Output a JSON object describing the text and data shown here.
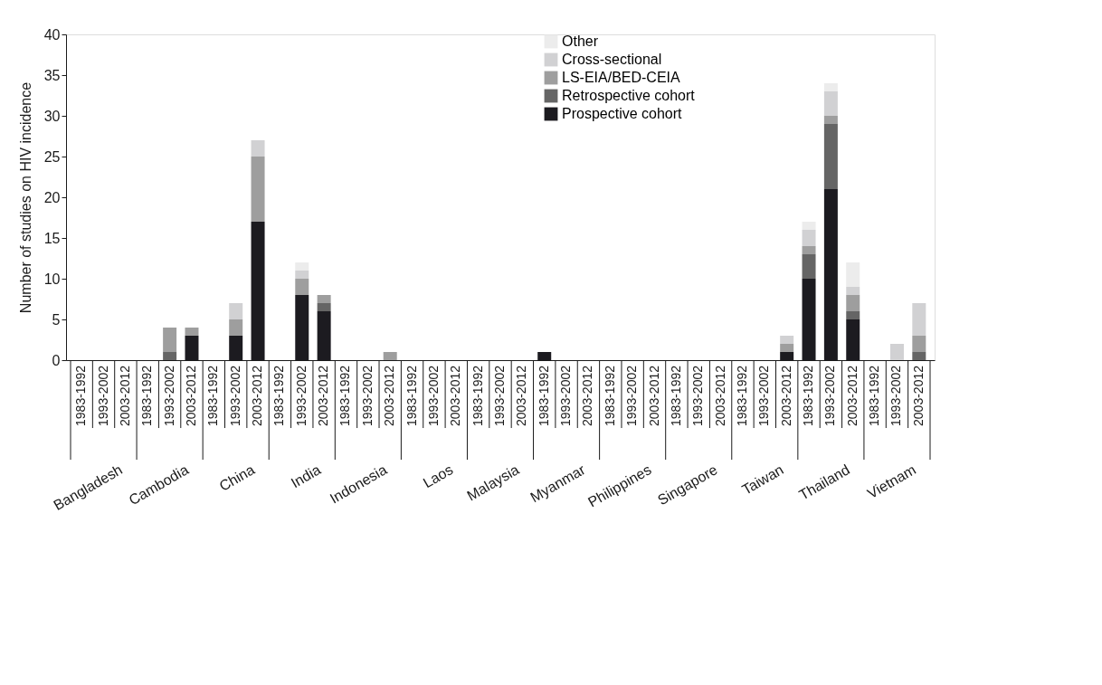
{
  "chart_data": {
    "type": "bar",
    "stacked": true,
    "ylabel": "Number of studies on HIV incidence",
    "categories": [
      "1983-1992",
      "1993-2002",
      "2003-2012",
      "1983-1992",
      "1993-2002",
      "2003-2012",
      "1983-1992",
      "1993-2002",
      "2003-2012",
      "1983-1992",
      "1993-2002",
      "2003-2012",
      "1983-1992",
      "1993-2002",
      "2003-2012",
      "1983-1992",
      "1993-2002",
      "2003-2012",
      "1983-1992",
      "1993-2002",
      "2003-2012",
      "1983-1992",
      "1993-2002",
      "2003-2012",
      "1983-1992",
      "1993-2002",
      "2003-2012",
      "1983-1992",
      "1993-2002",
      "2003-2012",
      "1983-1992",
      "1993-2002",
      "2003-2012",
      "1983-1992",
      "1993-2002",
      "2003-2012",
      "1983-1992",
      "1993-2002",
      "2003-2012"
    ],
    "annotations": [
      "Bangladesh",
      "Cambodia",
      "China",
      "India",
      "Indonesia",
      "Laos",
      "Malaysia",
      "Myanmar",
      "Philippines",
      "Singapore",
      "Taiwan",
      "Thailand",
      "Vietnam"
    ],
    "series": [
      {
        "name": "Prospective cohort",
        "color": "#1c1b20",
        "values": [
          0,
          0,
          0,
          0,
          0,
          3,
          0,
          3,
          17,
          0,
          8,
          6,
          0,
          0,
          0,
          0,
          0,
          0,
          0,
          0,
          0,
          1,
          0,
          0,
          0,
          0,
          0,
          0,
          0,
          0,
          0,
          0,
          1,
          10,
          21,
          5,
          0,
          0,
          0
        ]
      },
      {
        "name": "Retrospective cohort",
        "color": "#656565",
        "values": [
          0,
          0,
          0,
          0,
          1,
          0,
          0,
          0,
          0,
          0,
          0,
          1,
          0,
          0,
          0,
          0,
          0,
          0,
          0,
          0,
          0,
          0,
          0,
          0,
          0,
          0,
          0,
          0,
          0,
          0,
          0,
          0,
          0,
          3,
          8,
          1,
          0,
          0,
          1
        ]
      },
      {
        "name": "LS-EIA/BED-CEIA",
        "color": "#9e9e9e",
        "values": [
          0,
          0,
          0,
          0,
          3,
          1,
          0,
          2,
          8,
          0,
          2,
          1,
          0,
          0,
          1,
          0,
          0,
          0,
          0,
          0,
          0,
          0,
          0,
          0,
          0,
          0,
          0,
          0,
          0,
          0,
          0,
          0,
          1,
          1,
          1,
          2,
          0,
          0,
          2
        ]
      },
      {
        "name": "Cross-sectional",
        "color": "#d1d1d3",
        "values": [
          0,
          0,
          0,
          0,
          0,
          0,
          0,
          2,
          2,
          0,
          1,
          0,
          0,
          0,
          0,
          0,
          0,
          0,
          0,
          0,
          0,
          0,
          0,
          0,
          0,
          0,
          0,
          0,
          0,
          0,
          0,
          0,
          1,
          2,
          3,
          1,
          0,
          2,
          4
        ]
      },
      {
        "name": "Other",
        "color": "#ececec",
        "values": [
          0,
          0,
          0,
          0,
          0,
          0,
          0,
          0,
          0,
          0,
          1,
          0,
          0,
          0,
          0,
          0,
          0,
          0,
          0,
          0,
          0,
          0,
          0,
          0,
          0,
          0,
          0,
          0,
          0,
          0,
          0,
          0,
          0,
          1,
          1,
          3,
          0,
          0,
          0
        ]
      }
    ],
    "ylim": [
      0,
      40
    ],
    "yticks": [
      0,
      5,
      10,
      15,
      20,
      25,
      30,
      35,
      40
    ],
    "grid": false,
    "legend": "top right"
  }
}
